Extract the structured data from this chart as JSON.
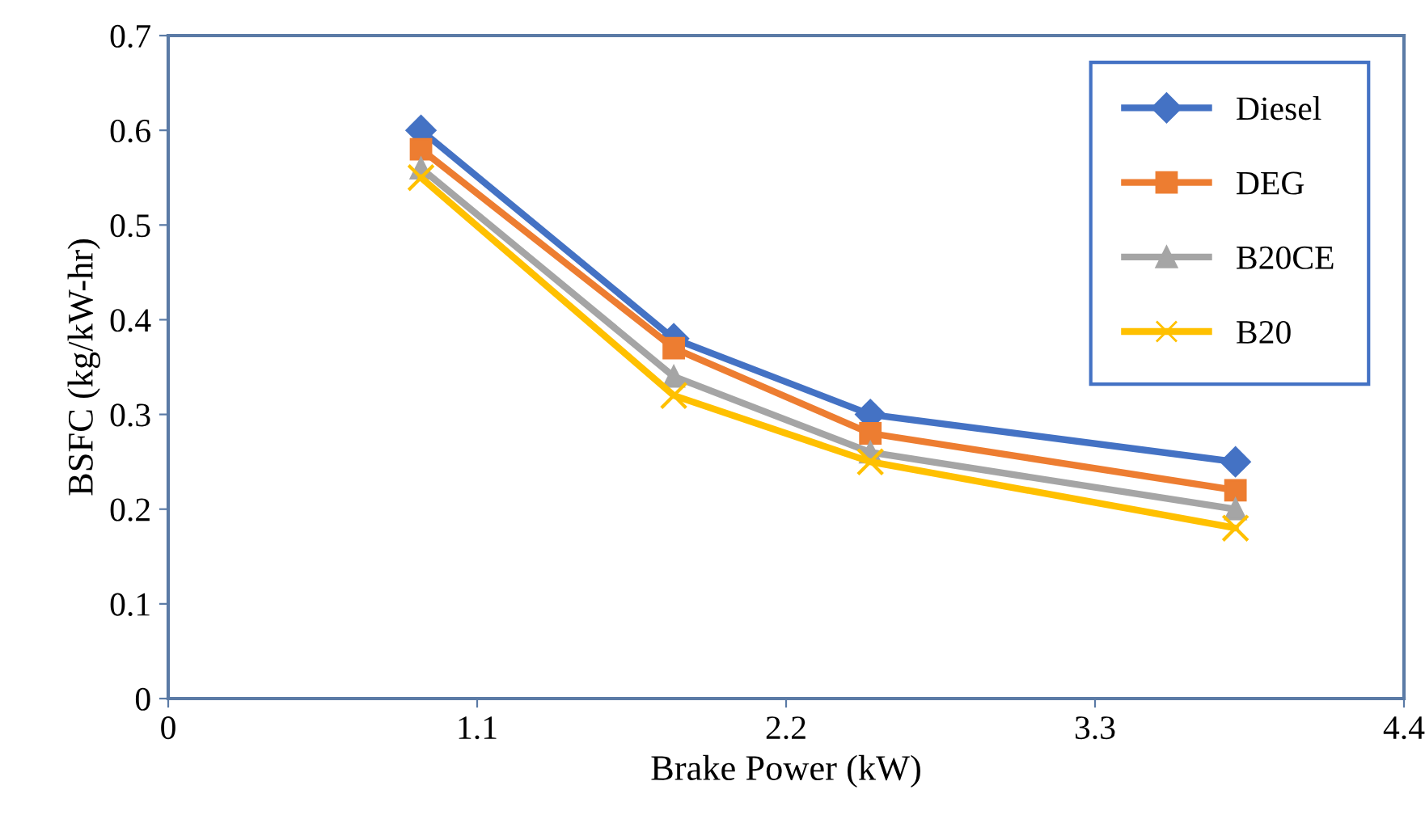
{
  "chart_data": {
    "type": "line",
    "xlabel": "Brake Power (kW)",
    "ylabel": "BSFC (kg/kW-hr)",
    "x": [
      0.9,
      1.8,
      2.5,
      3.8
    ],
    "xlim": [
      0,
      4.4
    ],
    "xticks": [
      0,
      1.1,
      2.2,
      3.3,
      4.4
    ],
    "ylim": [
      0,
      0.7
    ],
    "yticks": [
      0,
      0.1,
      0.2,
      0.3,
      0.4,
      0.5,
      0.6,
      0.7
    ],
    "grid": false,
    "legend": "top right",
    "series": [
      {
        "name": "Diesel",
        "color": "#4472c4",
        "marker": "diamond",
        "values": [
          0.6,
          0.38,
          0.3,
          0.25
        ]
      },
      {
        "name": "DEG",
        "color": "#ed7d31",
        "marker": "square",
        "values": [
          0.58,
          0.37,
          0.28,
          0.22
        ]
      },
      {
        "name": "B20CE",
        "color": "#a5a5a5",
        "marker": "triangle",
        "values": [
          0.56,
          0.34,
          0.26,
          0.2
        ]
      },
      {
        "name": "B20",
        "color": "#ffc000",
        "marker": "cross",
        "values": [
          0.55,
          0.32,
          0.25,
          0.18
        ]
      }
    ]
  }
}
